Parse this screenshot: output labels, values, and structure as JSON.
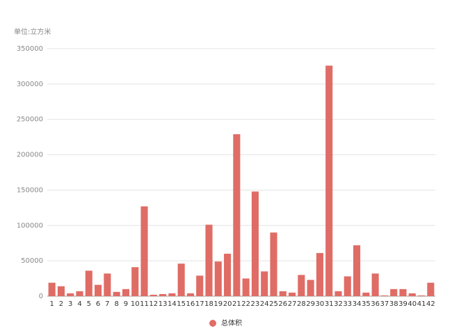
{
  "chart_data": {
    "type": "bar",
    "unit_label": "单位:立方米",
    "categories": [
      "1",
      "2",
      "3",
      "4",
      "5",
      "6",
      "7",
      "8",
      "9",
      "10",
      "11",
      "12",
      "13",
      "14",
      "15",
      "16",
      "17",
      "18",
      "19",
      "20",
      "21",
      "22",
      "23",
      "24",
      "25",
      "26",
      "27",
      "28",
      "29",
      "30",
      "31",
      "32",
      "33",
      "34",
      "35",
      "36",
      "37",
      "38",
      "39",
      "40",
      "41",
      "42"
    ],
    "series": [
      {
        "name": "总体积",
        "color": "#e06c66",
        "values": [
          19000,
          14000,
          4000,
          7000,
          36000,
          16000,
          32000,
          6000,
          10000,
          41000,
          127000,
          2000,
          3000,
          4000,
          46000,
          4000,
          29000,
          101000,
          49000,
          60000,
          229000,
          25000,
          148000,
          35000,
          90000,
          7000,
          5000,
          30000,
          23000,
          61000,
          326000,
          7000,
          28000,
          72000,
          5000,
          32000,
          1000,
          10000,
          10000,
          4000,
          1000,
          19000
        ]
      }
    ],
    "ylim": [
      0,
      350000
    ],
    "yticks": [
      0,
      50000,
      100000,
      150000,
      200000,
      250000,
      300000,
      350000
    ],
    "grid": true
  }
}
